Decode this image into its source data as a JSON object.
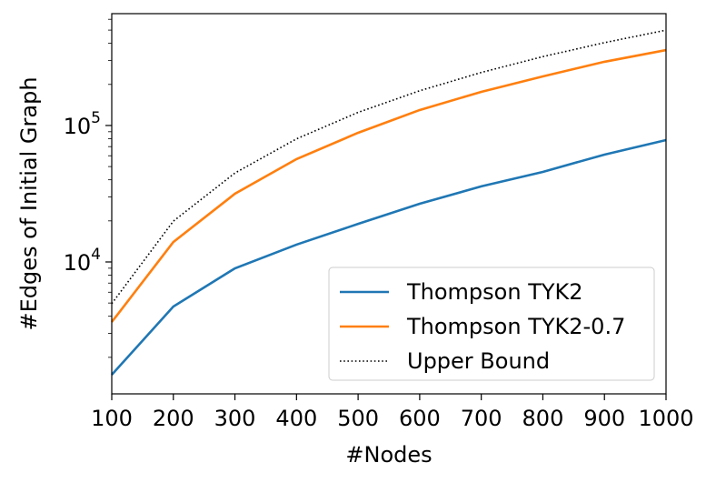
{
  "chart_data": {
    "type": "line",
    "x_label": "#Nodes",
    "y_label": "#Edges of Initial Graph",
    "x": [
      100,
      200,
      300,
      400,
      500,
      600,
      700,
      800,
      900,
      1000
    ],
    "series": [
      {
        "name": "Thompson TYK2",
        "color": "#1f77b4",
        "style": "solid",
        "values": [
          1490,
          4710,
          8980,
          13400,
          19000,
          26700,
          35800,
          45700,
          61200,
          78200
        ]
      },
      {
        "name": "Thompson TYK2-0.7",
        "color": "#ff7f0e",
        "style": "solid",
        "values": [
          3630,
          14000,
          31600,
          56700,
          88400,
          129800,
          176400,
          229000,
          293000,
          357000
        ]
      },
      {
        "name": "Upper Bound",
        "color": "#000000",
        "style": "dotted",
        "values": [
          4950,
          19900,
          44850,
          79800,
          124750,
          179700,
          244650,
          319600,
          404550,
          499500
        ]
      }
    ],
    "xlim": [
      100,
      1000
    ],
    "xticks": [
      100,
      200,
      300,
      400,
      500,
      600,
      700,
      800,
      900,
      1000
    ],
    "ylim": [
      1080,
      660000
    ],
    "yscale": "log",
    "yticks": [
      {
        "value": 10000,
        "label": "10",
        "exponent": "4"
      },
      {
        "value": 100000,
        "label": "10",
        "exponent": "5"
      }
    ],
    "yminorticks": [
      2000,
      3000,
      4000,
      5000,
      6000,
      7000,
      8000,
      9000,
      20000,
      30000,
      40000,
      50000,
      60000,
      70000,
      80000,
      90000,
      200000,
      300000,
      400000,
      500000,
      600000
    ],
    "legend": "lower right",
    "grid": false
  }
}
